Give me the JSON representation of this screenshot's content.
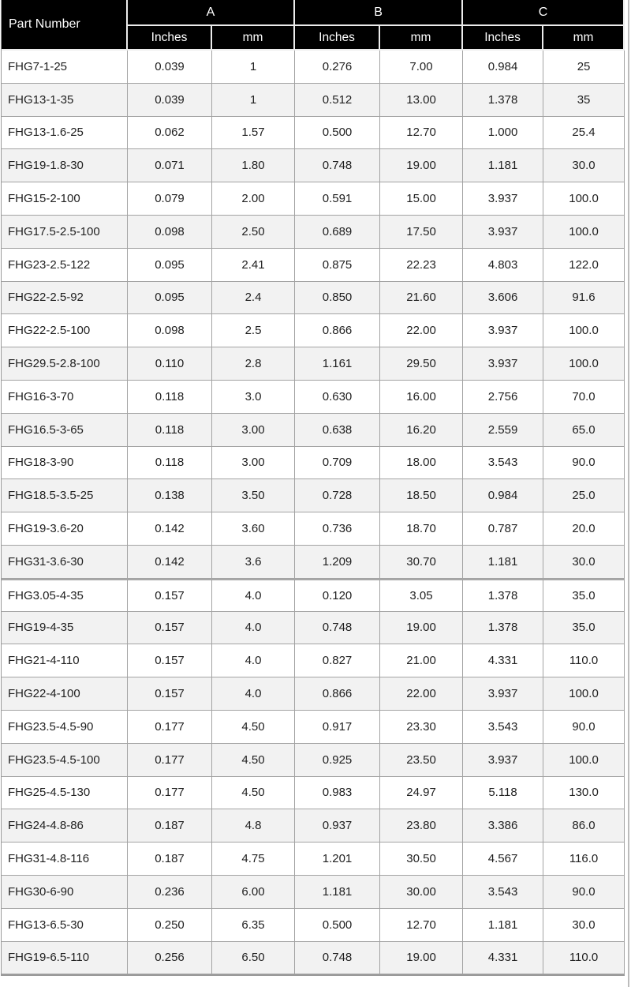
{
  "colors": {
    "header_bg": "#000000",
    "header_text": "#ffffff",
    "row_bg": "#ffffff",
    "row_alt_bg": "#f2f2f2",
    "cell_border": "#a3a3a3",
    "header_divider": "#ececec",
    "body_text": "#1f1f1f"
  },
  "table": {
    "header": {
      "part_label": "Part Number",
      "groups": [
        "A",
        "B",
        "C"
      ],
      "sub_labels": [
        "Inches",
        "mm",
        "Inches",
        "mm",
        "Inches",
        "mm"
      ]
    },
    "section_start_index": 16,
    "rows": [
      {
        "part": "FHG7-1-25",
        "a_in": "0.039",
        "a_mm": "1",
        "b_in": "0.276",
        "b_mm": "7.00",
        "c_in": "0.984",
        "c_mm": "25"
      },
      {
        "part": "FHG13-1-35",
        "a_in": "0.039",
        "a_mm": "1",
        "b_in": "0.512",
        "b_mm": "13.00",
        "c_in": "1.378",
        "c_mm": "35"
      },
      {
        "part": "FHG13-1.6-25",
        "a_in": "0.062",
        "a_mm": "1.57",
        "b_in": "0.500",
        "b_mm": "12.70",
        "c_in": "1.000",
        "c_mm": "25.4"
      },
      {
        "part": "FHG19-1.8-30",
        "a_in": "0.071",
        "a_mm": "1.80",
        "b_in": "0.748",
        "b_mm": "19.00",
        "c_in": "1.181",
        "c_mm": "30.0"
      },
      {
        "part": "FHG15-2-100",
        "a_in": "0.079",
        "a_mm": "2.00",
        "b_in": "0.591",
        "b_mm": "15.00",
        "c_in": "3.937",
        "c_mm": "100.0"
      },
      {
        "part": "FHG17.5-2.5-100",
        "a_in": "0.098",
        "a_mm": "2.50",
        "b_in": "0.689",
        "b_mm": "17.50",
        "c_in": "3.937",
        "c_mm": "100.0"
      },
      {
        "part": "FHG23-2.5-122",
        "a_in": "0.095",
        "a_mm": "2.41",
        "b_in": "0.875",
        "b_mm": "22.23",
        "c_in": "4.803",
        "c_mm": "122.0"
      },
      {
        "part": "FHG22-2.5-92",
        "a_in": "0.095",
        "a_mm": "2.4",
        "b_in": "0.850",
        "b_mm": "21.60",
        "c_in": "3.606",
        "c_mm": "91.6"
      },
      {
        "part": "FHG22-2.5-100",
        "a_in": "0.098",
        "a_mm": "2.5",
        "b_in": "0.866",
        "b_mm": "22.00",
        "c_in": "3.937",
        "c_mm": "100.0"
      },
      {
        "part": "FHG29.5-2.8-100",
        "a_in": "0.110",
        "a_mm": "2.8",
        "b_in": "1.161",
        "b_mm": "29.50",
        "c_in": "3.937",
        "c_mm": "100.0"
      },
      {
        "part": "FHG16-3-70",
        "a_in": "0.118",
        "a_mm": "3.0",
        "b_in": "0.630",
        "b_mm": "16.00",
        "c_in": "2.756",
        "c_mm": "70.0"
      },
      {
        "part": "FHG16.5-3-65",
        "a_in": "0.118",
        "a_mm": "3.00",
        "b_in": "0.638",
        "b_mm": "16.20",
        "c_in": "2.559",
        "c_mm": "65.0"
      },
      {
        "part": "FHG18-3-90",
        "a_in": "0.118",
        "a_mm": "3.00",
        "b_in": "0.709",
        "b_mm": "18.00",
        "c_in": "3.543",
        "c_mm": "90.0"
      },
      {
        "part": "FHG18.5-3.5-25",
        "a_in": "0.138",
        "a_mm": "3.50",
        "b_in": "0.728",
        "b_mm": "18.50",
        "c_in": "0.984",
        "c_mm": "25.0"
      },
      {
        "part": "FHG19-3.6-20",
        "a_in": "0.142",
        "a_mm": "3.60",
        "b_in": "0.736",
        "b_mm": "18.70",
        "c_in": "0.787",
        "c_mm": "20.0"
      },
      {
        "part": "FHG31-3.6-30",
        "a_in": "0.142",
        "a_mm": "3.6",
        "b_in": "1.209",
        "b_mm": "30.70",
        "c_in": "1.181",
        "c_mm": "30.0"
      },
      {
        "part": "FHG3.05-4-35",
        "a_in": "0.157",
        "a_mm": "4.0",
        "b_in": "0.120",
        "b_mm": "3.05",
        "c_in": "1.378",
        "c_mm": "35.0"
      },
      {
        "part": "FHG19-4-35",
        "a_in": "0.157",
        "a_mm": "4.0",
        "b_in": "0.748",
        "b_mm": "19.00",
        "c_in": "1.378",
        "c_mm": "35.0"
      },
      {
        "part": "FHG21-4-110",
        "a_in": "0.157",
        "a_mm": "4.0",
        "b_in": "0.827",
        "b_mm": "21.00",
        "c_in": "4.331",
        "c_mm": "110.0"
      },
      {
        "part": "FHG22-4-100",
        "a_in": "0.157",
        "a_mm": "4.0",
        "b_in": "0.866",
        "b_mm": "22.00",
        "c_in": "3.937",
        "c_mm": "100.0"
      },
      {
        "part": "FHG23.5-4.5-90",
        "a_in": "0.177",
        "a_mm": "4.50",
        "b_in": "0.917",
        "b_mm": "23.30",
        "c_in": "3.543",
        "c_mm": "90.0"
      },
      {
        "part": "FHG23.5-4.5-100",
        "a_in": "0.177",
        "a_mm": "4.50",
        "b_in": "0.925",
        "b_mm": "23.50",
        "c_in": "3.937",
        "c_mm": "100.0"
      },
      {
        "part": "FHG25-4.5-130",
        "a_in": "0.177",
        "a_mm": "4.50",
        "b_in": "0.983",
        "b_mm": "24.97",
        "c_in": "5.118",
        "c_mm": "130.0"
      },
      {
        "part": "FHG24-4.8-86",
        "a_in": "0.187",
        "a_mm": "4.8",
        "b_in": "0.937",
        "b_mm": "23.80",
        "c_in": "3.386",
        "c_mm": "86.0"
      },
      {
        "part": "FHG31-4.8-116",
        "a_in": "0.187",
        "a_mm": "4.75",
        "b_in": "1.201",
        "b_mm": "30.50",
        "c_in": "4.567",
        "c_mm": "116.0"
      },
      {
        "part": "FHG30-6-90",
        "a_in": "0.236",
        "a_mm": "6.00",
        "b_in": "1.181",
        "b_mm": "30.00",
        "c_in": "3.543",
        "c_mm": "90.0"
      },
      {
        "part": "FHG13-6.5-30",
        "a_in": "0.250",
        "a_mm": "6.35",
        "b_in": "0.500",
        "b_mm": "12.70",
        "c_in": "1.181",
        "c_mm": "30.0"
      },
      {
        "part": "FHG19-6.5-110",
        "a_in": "0.256",
        "a_mm": "6.50",
        "b_in": "0.748",
        "b_mm": "19.00",
        "c_in": "4.331",
        "c_mm": "110.0"
      }
    ]
  }
}
